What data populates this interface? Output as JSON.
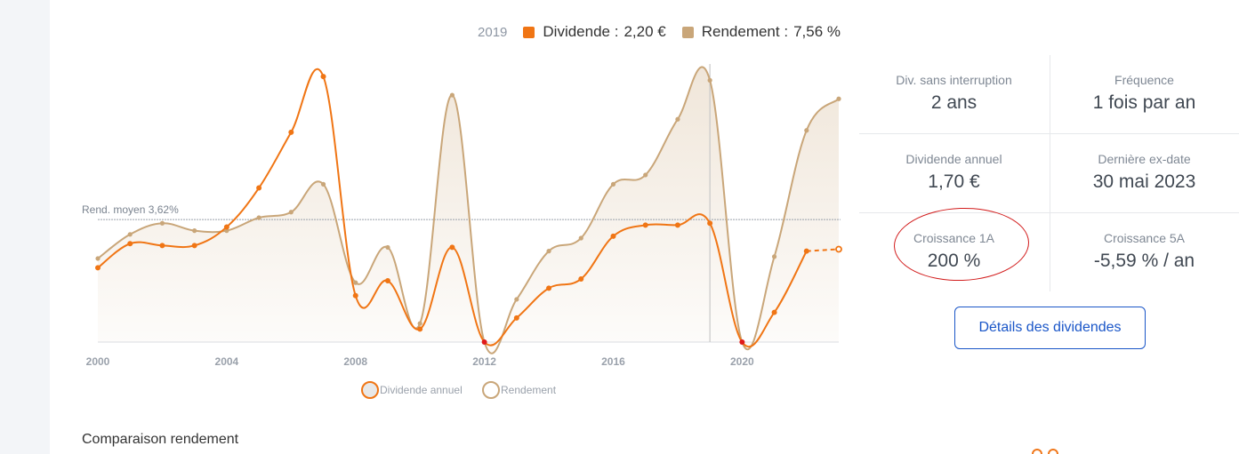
{
  "header": {
    "year": "2019",
    "dividend_label": "Dividende :",
    "dividend_value": "2,20 €",
    "yield_label": "Rendement :",
    "yield_value": "7,56 %"
  },
  "colors": {
    "dividend": "#f07514",
    "yield": "#c9a679",
    "red": "#e01b1b",
    "grid": "#b9bec6",
    "crosshair": "#c8c8c8",
    "accent": "#1a56c8"
  },
  "chart_data": {
    "type": "line",
    "x": [
      2000,
      2001,
      2002,
      2003,
      2004,
      2005,
      2006,
      2007,
      2008,
      2009,
      2010,
      2011,
      2012,
      2013,
      2014,
      2015,
      2016,
      2017,
      2018,
      2019,
      2020,
      2021,
      2022,
      2023
    ],
    "xticks": [
      "2000",
      "2004",
      "2008",
      "2012",
      "2016",
      "2020"
    ],
    "series": [
      {
        "name": "Dividende annuel",
        "values": [
          0.4,
          0.53,
          0.52,
          0.52,
          0.62,
          0.83,
          1.13,
          1.43,
          0.25,
          0.33,
          0.07,
          0.51,
          0,
          0.13,
          0.29,
          0.34,
          0.57,
          0.63,
          0.63,
          0.64,
          0,
          0.16,
          0.49,
          0.5
        ]
      },
      {
        "name": "Rendement",
        "values": [
          0.45,
          0.58,
          0.64,
          0.6,
          0.6,
          0.67,
          0.7,
          0.85,
          0.32,
          0.51,
          0.1,
          1.33,
          0,
          0.23,
          0.49,
          0.56,
          0.85,
          0.9,
          1.2,
          1.41,
          0,
          0.46,
          1.14,
          1.31
        ]
      }
    ],
    "reference_line": {
      "label": "Rend. moyen 3,62%",
      "value": 0.66
    },
    "crosshair_x": 2019,
    "legend": [
      "Dividende annuel",
      "Rendement"
    ],
    "legend_position": "bottom"
  },
  "stats": [
    {
      "title": "Div. sans interruption",
      "value": "2 ans"
    },
    {
      "title": "Fréquence",
      "value": "1 fois par an"
    },
    {
      "title": "Dividende annuel",
      "value": "1,70 €"
    },
    {
      "title": "Dernière ex-date",
      "value": "30 mai 2023"
    },
    {
      "title": "Croissance 1A",
      "value": "200 %"
    },
    {
      "title": "Croissance 5A",
      "value": "-5,59 % / an"
    }
  ],
  "details_button": "Détails des dividendes",
  "section_title": "Comparaison rendement"
}
